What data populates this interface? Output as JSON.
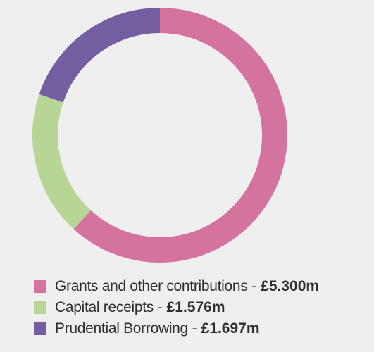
{
  "chart_data": {
    "type": "pie",
    "donut": true,
    "categories": [
      "Grants and other contributions",
      "Capital receipts",
      "Prudential Borrowing"
    ],
    "values": [
      5.3,
      1.576,
      1.697
    ],
    "value_labels": [
      "£5.300m",
      "£1.576m",
      "£1.697m"
    ],
    "separator": " - ",
    "colors": [
      "#d5739f",
      "#b7d594",
      "#735ea1"
    ],
    "legend_position": "bottom-left",
    "title": "",
    "xlabel": "",
    "ylabel": ""
  }
}
